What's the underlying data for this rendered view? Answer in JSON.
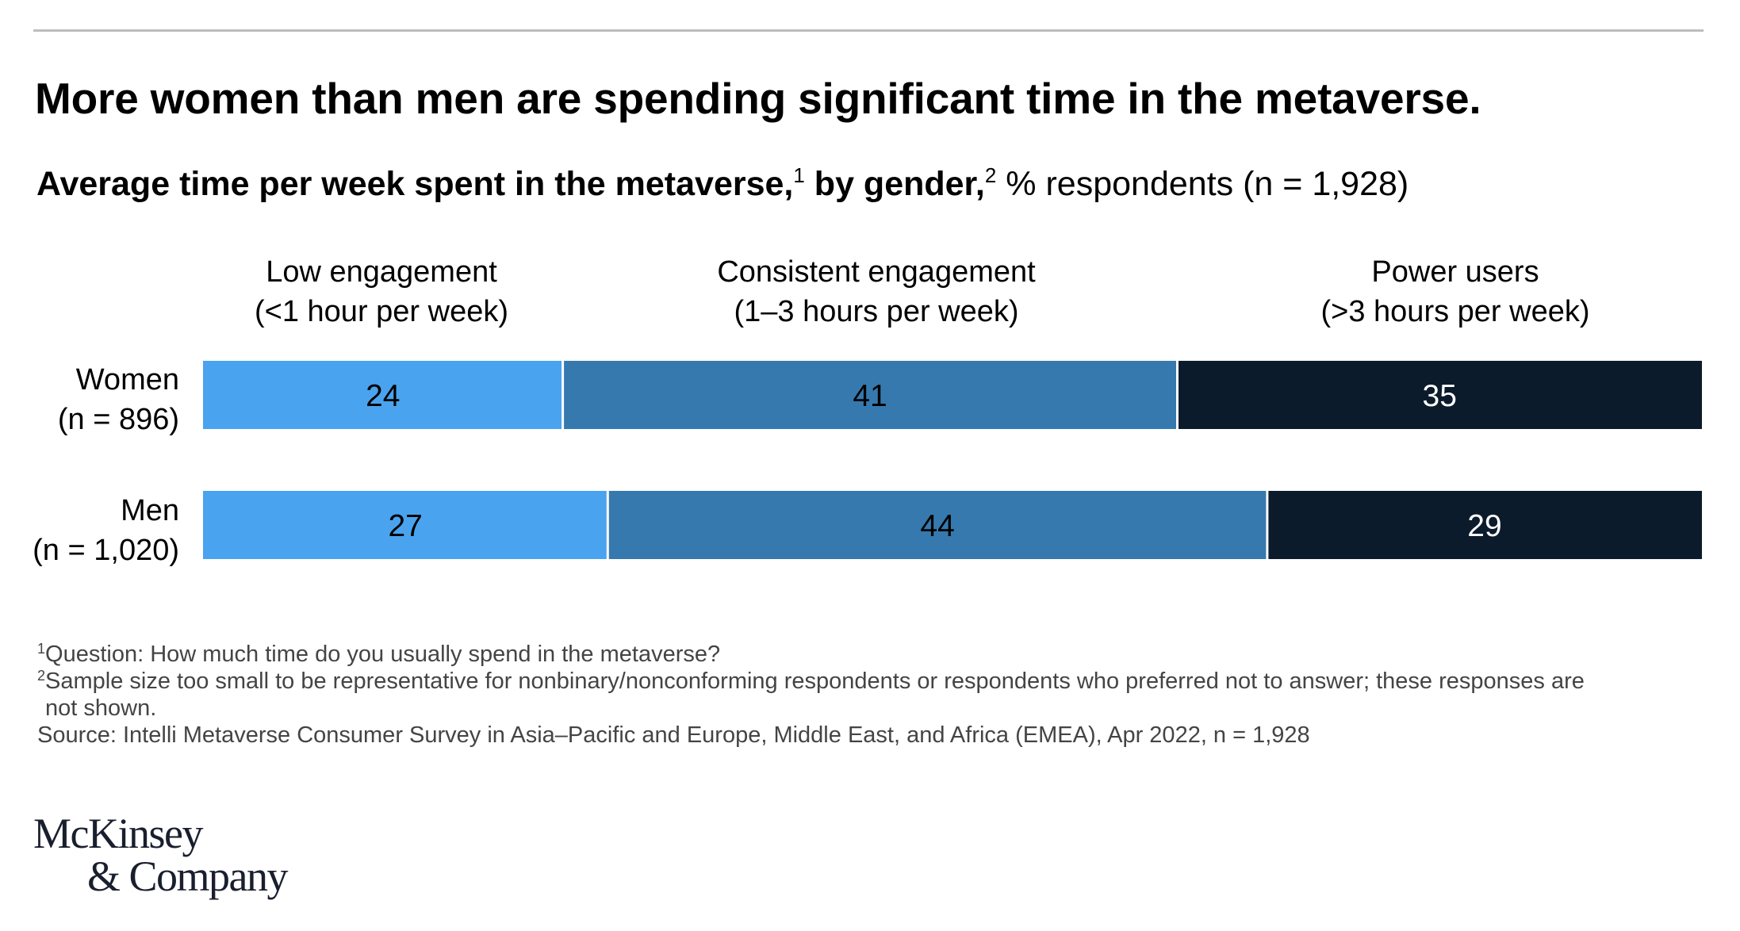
{
  "title": "More women than men are spending significant time in the metaverse.",
  "subtitle": {
    "bold_part1": "Average time per week spent in the metaverse,",
    "sup1": "1",
    "bold_part2": " by gender,",
    "sup2": "2",
    "regular": " % respondents (n = 1,928)"
  },
  "chart_data": {
    "type": "bar",
    "orientation": "horizontal",
    "stacked": true,
    "normalized": true,
    "categories": [
      {
        "line1": "Women",
        "line2": "(n = 896)"
      },
      {
        "line1": "Men",
        "line2": "(n = 1,020)"
      }
    ],
    "series": [
      {
        "name": "Low engagement",
        "detail": "(<1 hour per week)",
        "color": "#4aa3ee",
        "values": [
          24,
          27
        ]
      },
      {
        "name": "Consistent engagement",
        "detail": "(1–3 hours per week)",
        "color": "#3679ae",
        "values": [
          41,
          44
        ]
      },
      {
        "name": "Power users",
        "detail": "(>3 hours per week)",
        "color": "#0c1b2c",
        "values": [
          35,
          29
        ]
      }
    ],
    "label_colors": [
      "#000000",
      "#000000",
      "#ffffff"
    ],
    "xlim": [
      0,
      100
    ],
    "grid": false,
    "legend": "column headers above bars"
  },
  "footnotes": {
    "note1_num": "1",
    "note1": "Question: How much time do you usually spend in the metaverse?",
    "note2_num": "2",
    "note2_line1": "Sample size too small to be representative for nonbinary/nonconforming respondents or respondents who preferred not to answer; these responses are",
    "note2_line2": "not shown.",
    "source": "Source: Intelli Metaverse Consumer Survey in Asia–Pacific and Europe, Middle East, and Africa (EMEA), Apr 2022, n = 1,928"
  },
  "logo": {
    "line1": "McKinsey",
    "line2": "& Company"
  }
}
